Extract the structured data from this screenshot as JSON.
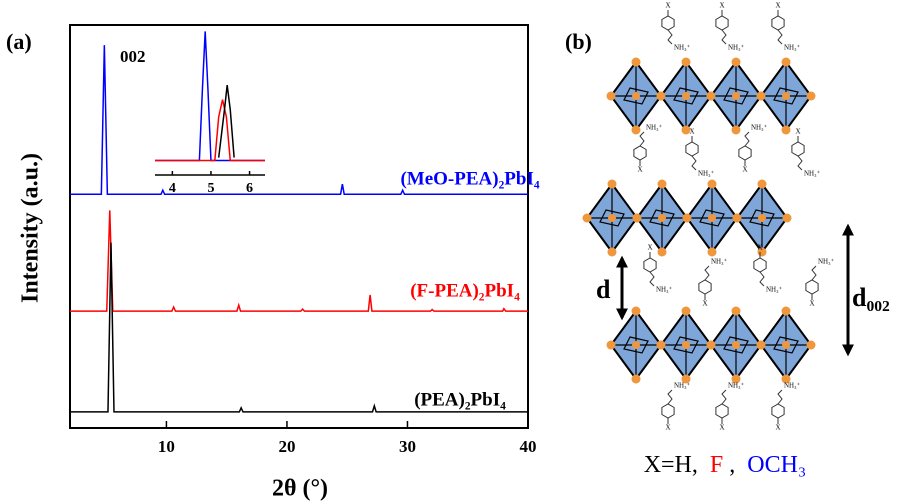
{
  "chart_data": [
    {
      "type": "line",
      "panel_label": "(a)",
      "xlabel": "2θ (°)",
      "ylabel": "Intensity (a.u.)",
      "annotation": "002",
      "xlim": [
        2,
        40
      ],
      "xticks": [
        10,
        20,
        30,
        40
      ],
      "ylim": [
        0,
        100
      ],
      "series": [
        {
          "name": "(MeO-PEA)₂PbI₄",
          "color": "#0000ff",
          "x": [
            2,
            4.6,
            4.85,
            5.1,
            9.55,
            9.7,
            9.85,
            24.45,
            24.6,
            24.75,
            29.45,
            29.6,
            29.75,
            40
          ],
          "values": [
            58,
            58,
            95,
            58,
            58,
            59,
            58,
            58,
            60.5,
            58,
            58,
            59,
            58,
            58
          ]
        },
        {
          "name": "(F-PEA)₂PbI₄",
          "color": "#ff0000",
          "x": [
            2,
            5.05,
            5.3,
            5.55,
            10.45,
            10.6,
            10.75,
            15.85,
            16,
            16.15,
            21.15,
            21.3,
            21.45,
            26.75,
            26.9,
            27.05,
            31.9,
            32.05,
            32.2,
            37.9,
            38,
            38.15,
            40
          ],
          "values": [
            29,
            29,
            54,
            29,
            29,
            30,
            29,
            29,
            30.5,
            29,
            29,
            29.5,
            29,
            29,
            33,
            29,
            29,
            29.4,
            29,
            29,
            29.6,
            29,
            29
          ]
        },
        {
          "name": "(PEA)₂PbI₄",
          "color": "#000000",
          "x": [
            2,
            5.15,
            5.4,
            5.65,
            16.05,
            16.2,
            16.35,
            27.1,
            27.25,
            27.4,
            40
          ],
          "values": [
            4,
            4,
            46,
            4,
            4,
            5,
            4,
            4,
            5.5,
            4,
            4
          ]
        }
      ]
    },
    {
      "type": "line",
      "xlim": [
        3.55,
        6.4
      ],
      "xticks": [
        4,
        5,
        6
      ],
      "ylim": [
        0,
        100
      ],
      "series": [
        {
          "color": "#0000ff",
          "x": [
            3.55,
            4.7,
            4.78,
            4.85,
            4.92,
            5.0,
            6.4
          ],
          "values": [
            10,
            10,
            60,
            99,
            60,
            10,
            10
          ]
        },
        {
          "color": "#ff0000",
          "x": [
            3.55,
            5.1,
            5.2,
            5.3,
            5.4,
            5.5,
            6.4
          ],
          "values": [
            10,
            10,
            40,
            52,
            40,
            10,
            10
          ]
        },
        {
          "color": "#000000",
          "x": [
            5.2,
            5.35,
            5.42,
            5.5,
            5.6
          ],
          "values": [
            12,
            45,
            62,
            45,
            12
          ]
        }
      ]
    }
  ],
  "diagram": {
    "panel_label": "(b)",
    "molecule_labels": {
      "substituent": "X",
      "amine": "NH₃⁺"
    },
    "spacing_labels": [
      "d",
      "d₀₀₂"
    ],
    "caption": [
      "X=H,",
      "F",
      ",",
      "OCH₃"
    ]
  }
}
